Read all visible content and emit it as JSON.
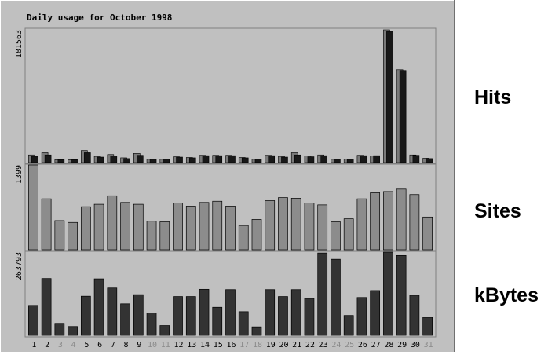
{
  "chart_data": {
    "type": "bar",
    "title": "Daily usage for October 1998",
    "categories": [
      "1",
      "2",
      "3",
      "4",
      "5",
      "6",
      "7",
      "8",
      "9",
      "10",
      "11",
      "12",
      "13",
      "14",
      "15",
      "16",
      "17",
      "18",
      "19",
      "20",
      "21",
      "22",
      "23",
      "24",
      "25",
      "26",
      "27",
      "28",
      "29",
      "30",
      "31"
    ],
    "weekend_days": [
      "3",
      "4",
      "10",
      "11",
      "17",
      "18",
      "24",
      "25",
      "31"
    ],
    "panels": [
      {
        "name": "Hits",
        "ymax_label": "181563",
        "ymax": 181563,
        "series_front": [
          8500,
          10500,
          4000,
          4000,
          13500,
          7500,
          9000,
          5500,
          10000,
          4500,
          4500,
          7500,
          6500,
          9500,
          9500,
          9500,
          6500,
          4500,
          9500,
          7500,
          10500,
          8000,
          9500,
          4500,
          4500,
          9500,
          9500,
          179000,
          126000,
          10000,
          5500
        ],
        "series_back": [
          10500,
          13500,
          4000,
          4000,
          16500,
          8500,
          11000,
          6500,
          12500,
          4500,
          4500,
          8000,
          7000,
          10000,
          10000,
          10000,
          7000,
          4500,
          10000,
          8500,
          13500,
          9000,
          10500,
          4500,
          5000,
          10000,
          9000,
          181563,
          127000,
          10500,
          6000
        ]
      },
      {
        "name": "Sites",
        "ymax_label": "1399",
        "ymax": 1399,
        "values": [
          1399,
          840,
          480,
          450,
          710,
          750,
          890,
          780,
          750,
          470,
          460,
          770,
          720,
          780,
          800,
          720,
          400,
          500,
          810,
          860,
          850,
          770,
          740,
          460,
          510,
          840,
          940,
          960,
          1000,
          910,
          540
        ]
      },
      {
        "name": "kBytes",
        "ymax_label": "263793",
        "ymax": 263793,
        "values": [
          95000,
          180000,
          38000,
          28000,
          124000,
          179000,
          150000,
          100000,
          129000,
          71000,
          31000,
          123000,
          123000,
          146000,
          89000,
          145000,
          75000,
          27000,
          145000,
          123000,
          145000,
          117000,
          261000,
          241000,
          63000,
          120000,
          142000,
          263793,
          253000,
          127000,
          57000
        ]
      }
    ],
    "colors": {
      "frame_bg": "#c0c0c0",
      "grid": "#808080",
      "hits_front": "#181818",
      "hits_back": "#7a7a7a",
      "sites": "#8c8c8c",
      "kbytes": "#333333",
      "weekday_label": "#000000",
      "weekend_label": "#8a8a8a"
    }
  }
}
